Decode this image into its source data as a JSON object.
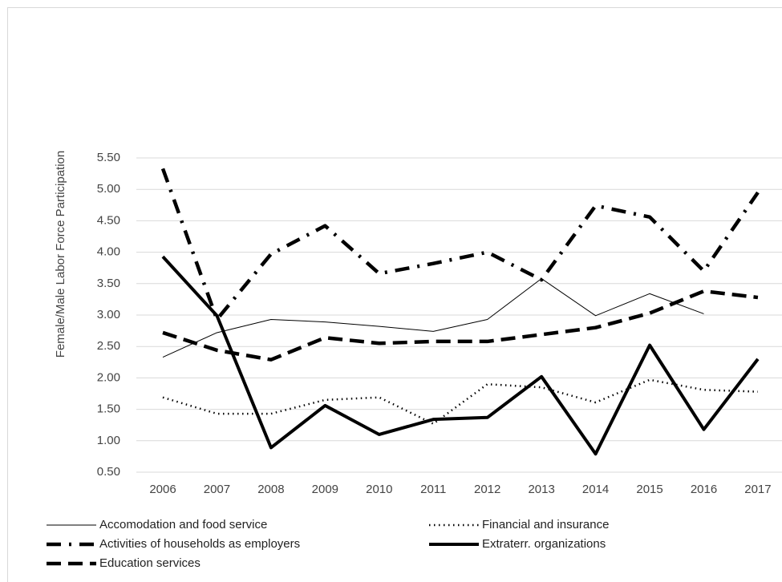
{
  "chart_data": {
    "type": "line",
    "y_label": "Female/Male Labor Force Participation",
    "categories": [
      "2006",
      "2007",
      "2008",
      "2009",
      "2010",
      "2011",
      "2012",
      "2013",
      "2014",
      "2015",
      "2016",
      "2017"
    ],
    "ylim": [
      0.5,
      5.5
    ],
    "yticks": [
      {
        "value": 0.5,
        "label": "0.50"
      },
      {
        "value": 1,
        "label": "1.00"
      },
      {
        "value": 1.5,
        "label": "1.50"
      },
      {
        "value": 2,
        "label": "2.00"
      },
      {
        "value": 2.5,
        "label": "2.50"
      },
      {
        "value": 3,
        "label": "3.00"
      },
      {
        "value": 3.5,
        "label": "3.50"
      },
      {
        "value": 4,
        "label": "4.00"
      },
      {
        "value": 4.5,
        "label": "4.50"
      },
      {
        "value": 5,
        "label": "5.00"
      },
      {
        "value": 5.5,
        "label": "5.50"
      }
    ],
    "grid": true,
    "series": [
      {
        "name": "Accomodation and food service",
        "color": "#000000",
        "dash": "thin",
        "values": [
          2.33,
          2.72,
          2.93,
          2.89,
          2.82,
          2.74,
          2.93,
          3.58,
          2.99,
          3.34,
          3.02,
          null
        ]
      },
      {
        "name": "Financial and insurance",
        "color": "#000000",
        "dash": "dotted",
        "values": [
          1.69,
          1.43,
          1.43,
          1.65,
          1.69,
          1.27,
          1.9,
          1.85,
          1.61,
          1.97,
          1.81,
          1.78
        ]
      },
      {
        "name": "Activities of households as employers",
        "color": "#000000",
        "dash": "dashdot",
        "values": [
          5.33,
          2.93,
          3.97,
          4.42,
          3.66,
          3.82,
          4.0,
          3.56,
          4.74,
          4.56,
          3.7,
          4.95
        ]
      },
      {
        "name": "Extraterr. organizations",
        "color": "#000000",
        "dash": "thick",
        "values": [
          3.93,
          2.99,
          0.89,
          1.56,
          1.1,
          1.34,
          1.37,
          2.02,
          0.79,
          2.52,
          1.18,
          2.3
        ]
      },
      {
        "name": "Education services",
        "color": "#000000",
        "dash": "dashed",
        "values": [
          2.72,
          2.44,
          2.29,
          2.64,
          2.55,
          2.58,
          2.58,
          2.69,
          2.8,
          3.03,
          3.38,
          3.28
        ]
      }
    ]
  }
}
